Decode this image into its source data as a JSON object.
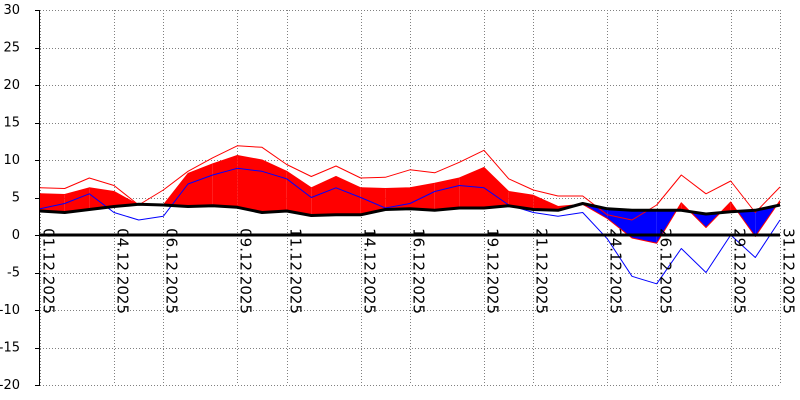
{
  "chart_data": {
    "type": "area",
    "title": "",
    "xlabel": "",
    "ylabel": "",
    "ylim": [
      -20,
      30
    ],
    "y_ticks": [
      30,
      25,
      20,
      15,
      10,
      5,
      0,
      -5,
      -10,
      -15,
      -20
    ],
    "x_tick_labels": [
      "01.12.2025",
      "04.12.2025",
      "06.12.2025",
      "09.12.2025",
      "11.12.2025",
      "14.12.2025",
      "16.12.2025",
      "19.12.2025",
      "21.12.2025",
      "24.12.2025",
      "26.12.2025",
      "29.12.2025",
      "31.12.2025"
    ],
    "grid": true,
    "legend": "none",
    "x": [
      "01.12.2025",
      "02.12.2025",
      "03.12.2025",
      "04.12.2025",
      "05.12.2025",
      "06.12.2025",
      "07.12.2025",
      "08.12.2025",
      "09.12.2025",
      "10.12.2025",
      "11.12.2025",
      "12.12.2025",
      "13.12.2025",
      "14.12.2025",
      "15.12.2025",
      "16.12.2025",
      "17.12.2025",
      "18.12.2025",
      "19.12.2025",
      "20.12.2025",
      "21.12.2025",
      "22.12.2025",
      "23.12.2025",
      "24.12.2025",
      "25.12.2025",
      "26.12.2025",
      "27.12.2025",
      "28.12.2025",
      "29.12.2025",
      "30.12.2025",
      "31.12.2025"
    ],
    "series": [
      {
        "values": [
          5.5,
          5.4,
          6.3,
          5.8,
          4.0,
          4.0,
          8.2,
          9.5,
          10.6,
          10.0,
          8.5,
          6.3,
          7.8,
          6.3,
          6.2,
          6.3,
          6.9,
          7.6,
          9.0,
          5.8,
          5.3,
          3.8,
          4.1,
          2.2,
          -0.4,
          -1.1,
          4.3,
          1.0,
          4.4,
          -0.2,
          4.6
        ],
        "color": "#ff0000"
      },
      {
        "values": [
          3.2,
          3.0,
          3.4,
          3.8,
          4.1,
          4.0,
          3.8,
          3.9,
          3.7,
          3.0,
          3.2,
          2.6,
          2.7,
          2.7,
          3.4,
          3.5,
          3.3,
          3.6,
          3.6,
          3.9,
          3.4,
          3.3,
          4.2,
          3.5,
          3.3,
          3.3,
          3.3,
          2.8,
          3.1,
          3.3,
          4.0
        ],
        "color": "#000000"
      },
      {
        "values": [
          6.3,
          6.2,
          7.6,
          6.6,
          4.0,
          6.0,
          8.5,
          10.3,
          11.9,
          11.7,
          9.4,
          7.8,
          9.2,
          7.6,
          7.7,
          8.7,
          8.3,
          9.7,
          11.3,
          7.5,
          6.0,
          5.2,
          5.2,
          2.7,
          2.0,
          4.0,
          8.0,
          5.5,
          7.2,
          3.0,
          6.4
        ],
        "color": "#ff0000"
      },
      {
        "values": [
          3.5,
          4.2,
          5.5,
          3.0,
          2.0,
          2.5,
          6.8,
          8.0,
          8.9,
          8.5,
          7.5,
          5.0,
          6.3,
          5.0,
          3.6,
          4.2,
          5.8,
          6.6,
          6.3,
          4.0,
          3.0,
          2.5,
          3.0,
          -0.5,
          -5.5,
          -6.5,
          -1.8,
          -5.0,
          0.0,
          -3.0,
          2.0
        ],
        "color": "#0000ff"
      }
    ],
    "colors": {
      "positive_fill": "#ff0000",
      "negative_fill": "#0000ff",
      "base_line": "#000000",
      "zero_line": "#000000",
      "grid": "#808080"
    }
  }
}
